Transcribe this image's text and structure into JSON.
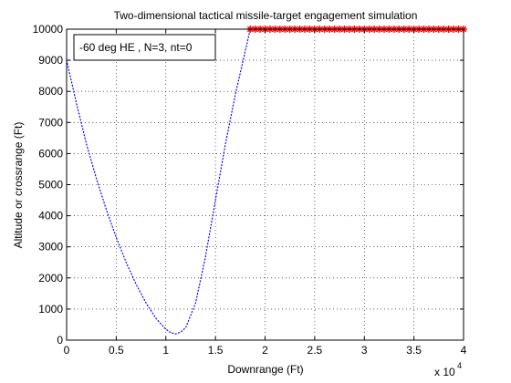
{
  "chart_data": {
    "type": "line",
    "title": "Two-dimensional tactical missile-target engagement simulation",
    "xlabel": "Downrange (Ft)",
    "ylabel": "Altitude or crossrange (Ft)",
    "x_multiplier_label": "x 10",
    "x_multiplier_exponent": "4",
    "xlim": [
      0,
      4
    ],
    "ylim": [
      0,
      10000
    ],
    "x_ticks": [
      0,
      0.5,
      1,
      1.5,
      2,
      2.5,
      3,
      3.5,
      4
    ],
    "x_tick_labels": [
      "0",
      "0.5",
      "1",
      "1.5",
      "2",
      "2.5",
      "3",
      "3.5",
      "4"
    ],
    "y_ticks": [
      0,
      1000,
      2000,
      3000,
      4000,
      5000,
      6000,
      7000,
      8000,
      9000,
      10000
    ],
    "y_tick_labels": [
      "0",
      "1000",
      "2000",
      "3000",
      "4000",
      "5000",
      "6000",
      "7000",
      "8000",
      "9000",
      "10000"
    ],
    "grid": true,
    "legend_text": "-60 deg HE , N=3, nt=0",
    "legend_placement": "top-left",
    "series": [
      {
        "color": "#0000ff",
        "style": "dotted",
        "x": [
          0,
          0.1,
          0.2,
          0.3,
          0.4,
          0.5,
          0.6,
          0.7,
          0.8,
          0.9,
          1.0,
          1.05,
          1.1,
          1.15,
          1.2,
          1.3,
          1.4,
          1.5,
          1.6,
          1.7,
          1.8,
          1.85
        ],
        "y": [
          9000,
          7600,
          6300,
          5200,
          4200,
          3300,
          2500,
          1800,
          1200,
          700,
          350,
          240,
          200,
          260,
          400,
          1200,
          2700,
          4500,
          6300,
          7900,
          9300,
          10000
        ]
      },
      {
        "color": "#ff0000",
        "style": "star-markers",
        "x": [
          1.85,
          1.9,
          1.95,
          2.0,
          2.05,
          2.1,
          2.15,
          2.2,
          2.25,
          2.3,
          2.35,
          2.4,
          2.45,
          2.5,
          2.55,
          2.6,
          2.65,
          2.7,
          2.75,
          2.8,
          2.85,
          2.9,
          2.95,
          3.0,
          3.05,
          3.1,
          3.15,
          3.2,
          3.25,
          3.3,
          3.35,
          3.4,
          3.45,
          3.5,
          3.55,
          3.6,
          3.65,
          3.7,
          3.75,
          3.8,
          3.85,
          3.9,
          3.95,
          4.0
        ],
        "y": [
          10000,
          10000,
          10000,
          10000,
          10000,
          10000,
          10000,
          10000,
          10000,
          10000,
          10000,
          10000,
          10000,
          10000,
          10000,
          10000,
          10000,
          10000,
          10000,
          10000,
          10000,
          10000,
          10000,
          10000,
          10000,
          10000,
          10000,
          10000,
          10000,
          10000,
          10000,
          10000,
          10000,
          10000,
          10000,
          10000,
          10000,
          10000,
          10000,
          10000,
          10000,
          10000,
          10000,
          10000
        ]
      }
    ]
  }
}
